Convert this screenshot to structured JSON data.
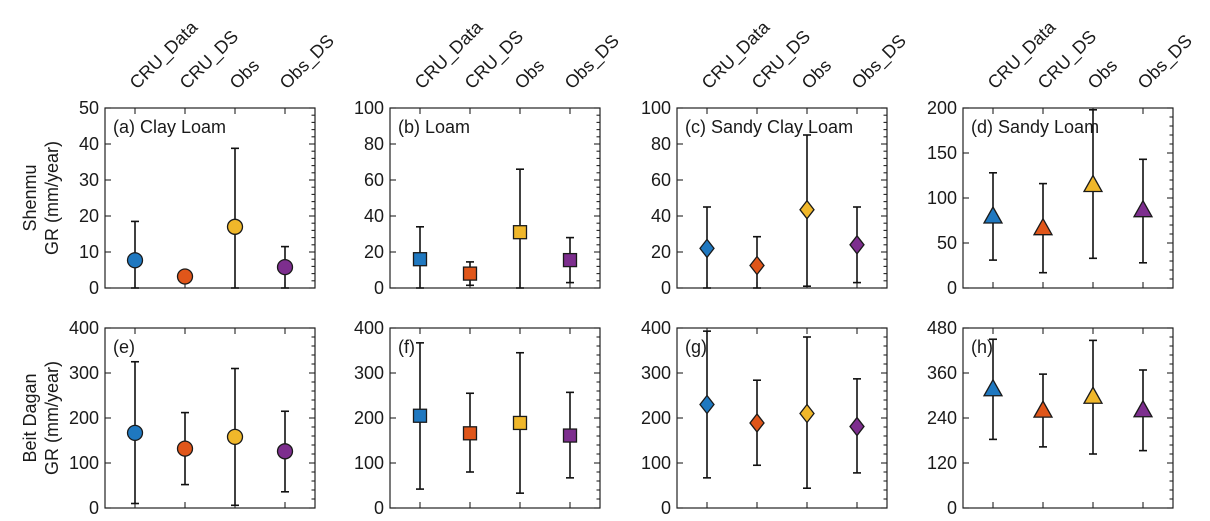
{
  "colors": {
    "CRU_Data": "#1f78c0",
    "CRU_DS": "#e0561a",
    "Obs": "#f0b72a",
    "Obs_DS": "#7d2e8e"
  },
  "chart_data": {
    "type": "scatter",
    "categories": [
      "CRU_Data",
      "CRU_DS",
      "Obs",
      "Obs_DS"
    ],
    "row_labels": [
      [
        "Shenmu",
        "GR (mm/year)"
      ],
      [
        "Beit Dagan",
        "GR (mm/year)"
      ]
    ],
    "panels": [
      {
        "label": "(a) Clay Loam",
        "row": 0,
        "col": 0,
        "marker": "circle",
        "ylim": [
          0,
          50
        ],
        "yticks": [
          0,
          10,
          20,
          30,
          40,
          50
        ],
        "values": [
          7.7,
          3.2,
          17,
          5.8
        ],
        "lower": [
          0,
          1.9,
          0,
          0
        ],
        "upper": [
          18.5,
          4.6,
          38.8,
          11.5
        ]
      },
      {
        "label": "(b) Loam",
        "row": 0,
        "col": 1,
        "marker": "square",
        "ylim": [
          0,
          100
        ],
        "yticks": [
          0,
          20,
          40,
          60,
          80,
          100
        ],
        "values": [
          16,
          8,
          31,
          15.5
        ],
        "lower": [
          0,
          1.5,
          0,
          3
        ],
        "upper": [
          34,
          14.5,
          66,
          28
        ]
      },
      {
        "label": "(c) Sandy Clay Loam",
        "row": 0,
        "col": 2,
        "marker": "diamond",
        "ylim": [
          0,
          100
        ],
        "yticks": [
          0,
          20,
          40,
          60,
          80,
          100
        ],
        "values": [
          22,
          12.5,
          43.5,
          24
        ],
        "lower": [
          0,
          0,
          1,
          3
        ],
        "upper": [
          45,
          28.5,
          85,
          45
        ]
      },
      {
        "label": "(d) Sandy Loam",
        "row": 0,
        "col": 3,
        "marker": "triangle",
        "ylim": [
          0,
          200
        ],
        "yticks": [
          0,
          50,
          100,
          150,
          200
        ],
        "values": [
          80,
          67,
          115,
          87
        ],
        "lower": [
          31,
          17,
          33,
          28
        ],
        "upper": [
          128,
          116,
          198,
          143
        ]
      },
      {
        "label": "(e)",
        "row": 1,
        "col": 0,
        "marker": "circle",
        "ylim": [
          0,
          400
        ],
        "yticks": [
          0,
          100,
          200,
          300,
          400
        ],
        "values": [
          167,
          132,
          158,
          126
        ],
        "lower": [
          10,
          52,
          6,
          36
        ],
        "upper": [
          325,
          212,
          310,
          215
        ]
      },
      {
        "label": "(f)",
        "row": 1,
        "col": 1,
        "marker": "square",
        "ylim": [
          0,
          400
        ],
        "yticks": [
          0,
          100,
          200,
          300,
          400
        ],
        "values": [
          205,
          166,
          189,
          161
        ],
        "lower": [
          42,
          80,
          33,
          67
        ],
        "upper": [
          367,
          255,
          345,
          257
        ]
      },
      {
        "label": "(g)",
        "row": 1,
        "col": 2,
        "marker": "diamond",
        "ylim": [
          0,
          400
        ],
        "yticks": [
          0,
          100,
          200,
          300,
          400
        ],
        "values": [
          230,
          189,
          210,
          181
        ],
        "lower": [
          67,
          95,
          44,
          78
        ],
        "upper": [
          393,
          284,
          380,
          287
        ]
      },
      {
        "label": "(h)",
        "row": 1,
        "col": 3,
        "marker": "triangle",
        "ylim": [
          0,
          480
        ],
        "yticks": [
          0,
          120,
          240,
          360,
          480
        ],
        "values": [
          318,
          261,
          298,
          262
        ],
        "lower": [
          183,
          163,
          144,
          153
        ],
        "upper": [
          450,
          357,
          447,
          368
        ]
      }
    ]
  }
}
